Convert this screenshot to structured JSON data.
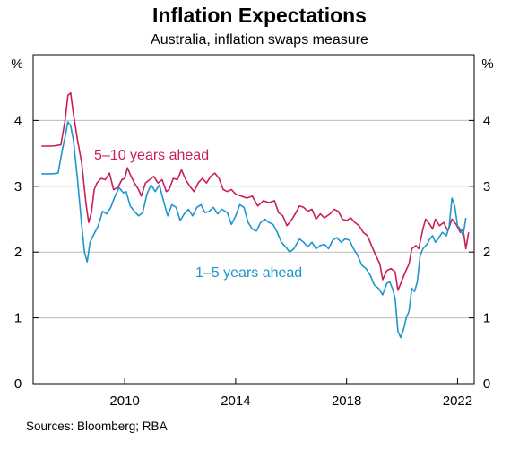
{
  "chart_data": {
    "type": "line",
    "title": "Inflation Expectations",
    "subtitle": "Australia, inflation swaps measure",
    "yunit_left": "%",
    "yunit_right": "%",
    "ylim": [
      0,
      5
    ],
    "xlim": [
      2006.7,
      2022.6
    ],
    "yticks": [
      "0",
      "1",
      "2",
      "3",
      "4"
    ],
    "xticks": [
      "2010",
      "2014",
      "2018",
      "2022"
    ],
    "grid": true,
    "legend": "inline labels",
    "source": "Sources: Bloomberg; RBA",
    "series": [
      {
        "name": "5–10 years ahead",
        "color": "#c81e5a",
        "points": [
          [
            2007.0,
            3.61
          ],
          [
            2007.4,
            3.61
          ],
          [
            2007.7,
            3.63
          ],
          [
            2007.85,
            4.0
          ],
          [
            2007.95,
            4.38
          ],
          [
            2008.05,
            4.42
          ],
          [
            2008.15,
            4.1
          ],
          [
            2008.3,
            3.7
          ],
          [
            2008.45,
            3.35
          ],
          [
            2008.6,
            2.75
          ],
          [
            2008.7,
            2.45
          ],
          [
            2008.8,
            2.6
          ],
          [
            2008.9,
            2.95
          ],
          [
            2009.0,
            3.05
          ],
          [
            2009.15,
            3.12
          ],
          [
            2009.3,
            3.1
          ],
          [
            2009.45,
            3.2
          ],
          [
            2009.6,
            2.95
          ],
          [
            2009.75,
            2.98
          ],
          [
            2009.9,
            3.1
          ],
          [
            2010.0,
            3.12
          ],
          [
            2010.1,
            3.28
          ],
          [
            2010.2,
            3.18
          ],
          [
            2010.35,
            3.05
          ],
          [
            2010.5,
            2.95
          ],
          [
            2010.6,
            2.85
          ],
          [
            2010.75,
            3.05
          ],
          [
            2010.9,
            3.1
          ],
          [
            2011.05,
            3.15
          ],
          [
            2011.2,
            3.05
          ],
          [
            2011.35,
            3.1
          ],
          [
            2011.5,
            2.92
          ],
          [
            2011.6,
            2.95
          ],
          [
            2011.75,
            3.12
          ],
          [
            2011.9,
            3.1
          ],
          [
            2012.05,
            3.25
          ],
          [
            2012.2,
            3.1
          ],
          [
            2012.35,
            3.0
          ],
          [
            2012.5,
            2.92
          ],
          [
            2012.65,
            3.05
          ],
          [
            2012.8,
            3.12
          ],
          [
            2012.95,
            3.05
          ],
          [
            2013.1,
            3.15
          ],
          [
            2013.25,
            3.2
          ],
          [
            2013.4,
            3.12
          ],
          [
            2013.55,
            2.95
          ],
          [
            2013.7,
            2.92
          ],
          [
            2013.85,
            2.95
          ],
          [
            2014.0,
            2.88
          ],
          [
            2014.2,
            2.85
          ],
          [
            2014.4,
            2.82
          ],
          [
            2014.6,
            2.85
          ],
          [
            2014.8,
            2.7
          ],
          [
            2015.0,
            2.78
          ],
          [
            2015.2,
            2.75
          ],
          [
            2015.4,
            2.78
          ],
          [
            2015.55,
            2.6
          ],
          [
            2015.7,
            2.55
          ],
          [
            2015.85,
            2.4
          ],
          [
            2016.0,
            2.48
          ],
          [
            2016.15,
            2.58
          ],
          [
            2016.3,
            2.7
          ],
          [
            2016.45,
            2.68
          ],
          [
            2016.6,
            2.62
          ],
          [
            2016.75,
            2.65
          ],
          [
            2016.9,
            2.5
          ],
          [
            2017.05,
            2.58
          ],
          [
            2017.2,
            2.52
          ],
          [
            2017.4,
            2.58
          ],
          [
            2017.55,
            2.65
          ],
          [
            2017.7,
            2.62
          ],
          [
            2017.85,
            2.5
          ],
          [
            2018.0,
            2.48
          ],
          [
            2018.15,
            2.52
          ],
          [
            2018.3,
            2.45
          ],
          [
            2018.45,
            2.4
          ],
          [
            2018.6,
            2.3
          ],
          [
            2018.75,
            2.25
          ],
          [
            2018.9,
            2.1
          ],
          [
            2019.05,
            1.95
          ],
          [
            2019.2,
            1.82
          ],
          [
            2019.3,
            1.58
          ],
          [
            2019.45,
            1.72
          ],
          [
            2019.6,
            1.75
          ],
          [
            2019.75,
            1.7
          ],
          [
            2019.85,
            1.42
          ],
          [
            2019.95,
            1.52
          ],
          [
            2020.1,
            1.68
          ],
          [
            2020.25,
            1.82
          ],
          [
            2020.35,
            2.05
          ],
          [
            2020.5,
            2.1
          ],
          [
            2020.6,
            2.05
          ],
          [
            2020.75,
            2.35
          ],
          [
            2020.85,
            2.5
          ],
          [
            2021.0,
            2.42
          ],
          [
            2021.1,
            2.35
          ],
          [
            2021.2,
            2.5
          ],
          [
            2021.35,
            2.4
          ],
          [
            2021.5,
            2.45
          ],
          [
            2021.65,
            2.32
          ],
          [
            2021.8,
            2.5
          ],
          [
            2021.95,
            2.42
          ],
          [
            2022.1,
            2.3
          ],
          [
            2022.2,
            2.35
          ],
          [
            2022.3,
            2.05
          ],
          [
            2022.4,
            2.3
          ]
        ]
      },
      {
        "name": "1–5 years ahead",
        "color": "#1e96cc",
        "points": [
          [
            2007.0,
            3.19
          ],
          [
            2007.4,
            3.19
          ],
          [
            2007.6,
            3.2
          ],
          [
            2007.75,
            3.55
          ],
          [
            2007.85,
            3.75
          ],
          [
            2007.95,
            3.98
          ],
          [
            2008.05,
            3.92
          ],
          [
            2008.15,
            3.7
          ],
          [
            2008.3,
            3.1
          ],
          [
            2008.45,
            2.4
          ],
          [
            2008.55,
            2.0
          ],
          [
            2008.65,
            1.85
          ],
          [
            2008.75,
            2.15
          ],
          [
            2008.9,
            2.28
          ],
          [
            2009.05,
            2.4
          ],
          [
            2009.2,
            2.62
          ],
          [
            2009.35,
            2.58
          ],
          [
            2009.5,
            2.68
          ],
          [
            2009.65,
            2.85
          ],
          [
            2009.8,
            2.98
          ],
          [
            2009.95,
            2.9
          ],
          [
            2010.05,
            2.92
          ],
          [
            2010.2,
            2.7
          ],
          [
            2010.35,
            2.62
          ],
          [
            2010.5,
            2.55
          ],
          [
            2010.65,
            2.6
          ],
          [
            2010.8,
            2.88
          ],
          [
            2010.95,
            3.02
          ],
          [
            2011.1,
            2.92
          ],
          [
            2011.25,
            3.02
          ],
          [
            2011.4,
            2.78
          ],
          [
            2011.55,
            2.55
          ],
          [
            2011.7,
            2.72
          ],
          [
            2011.85,
            2.68
          ],
          [
            2012.0,
            2.48
          ],
          [
            2012.15,
            2.58
          ],
          [
            2012.3,
            2.65
          ],
          [
            2012.45,
            2.55
          ],
          [
            2012.6,
            2.68
          ],
          [
            2012.75,
            2.72
          ],
          [
            2012.9,
            2.6
          ],
          [
            2013.05,
            2.62
          ],
          [
            2013.2,
            2.68
          ],
          [
            2013.35,
            2.58
          ],
          [
            2013.5,
            2.65
          ],
          [
            2013.7,
            2.6
          ],
          [
            2013.85,
            2.42
          ],
          [
            2014.0,
            2.55
          ],
          [
            2014.15,
            2.72
          ],
          [
            2014.3,
            2.68
          ],
          [
            2014.45,
            2.45
          ],
          [
            2014.6,
            2.35
          ],
          [
            2014.75,
            2.32
          ],
          [
            2014.9,
            2.45
          ],
          [
            2015.05,
            2.5
          ],
          [
            2015.2,
            2.45
          ],
          [
            2015.35,
            2.42
          ],
          [
            2015.5,
            2.3
          ],
          [
            2015.65,
            2.15
          ],
          [
            2015.8,
            2.08
          ],
          [
            2015.95,
            2.0
          ],
          [
            2016.1,
            2.05
          ],
          [
            2016.3,
            2.2
          ],
          [
            2016.45,
            2.15
          ],
          [
            2016.6,
            2.08
          ],
          [
            2016.75,
            2.15
          ],
          [
            2016.9,
            2.05
          ],
          [
            2017.05,
            2.1
          ],
          [
            2017.2,
            2.12
          ],
          [
            2017.35,
            2.05
          ],
          [
            2017.5,
            2.18
          ],
          [
            2017.65,
            2.22
          ],
          [
            2017.8,
            2.15
          ],
          [
            2017.95,
            2.2
          ],
          [
            2018.1,
            2.18
          ],
          [
            2018.25,
            2.05
          ],
          [
            2018.4,
            1.95
          ],
          [
            2018.55,
            1.8
          ],
          [
            2018.7,
            1.75
          ],
          [
            2018.85,
            1.65
          ],
          [
            2019.0,
            1.5
          ],
          [
            2019.15,
            1.45
          ],
          [
            2019.3,
            1.35
          ],
          [
            2019.45,
            1.52
          ],
          [
            2019.55,
            1.55
          ],
          [
            2019.65,
            1.45
          ],
          [
            2019.75,
            1.3
          ],
          [
            2019.85,
            0.8
          ],
          [
            2019.95,
            0.7
          ],
          [
            2020.05,
            0.82
          ],
          [
            2020.15,
            1.0
          ],
          [
            2020.25,
            1.1
          ],
          [
            2020.35,
            1.45
          ],
          [
            2020.45,
            1.4
          ],
          [
            2020.55,
            1.55
          ],
          [
            2020.65,
            1.95
          ],
          [
            2020.75,
            2.05
          ],
          [
            2020.9,
            2.12
          ],
          [
            2021.0,
            2.2
          ],
          [
            2021.1,
            2.25
          ],
          [
            2021.2,
            2.15
          ],
          [
            2021.3,
            2.2
          ],
          [
            2021.45,
            2.3
          ],
          [
            2021.6,
            2.25
          ],
          [
            2021.7,
            2.4
          ],
          [
            2021.8,
            2.82
          ],
          [
            2021.9,
            2.7
          ],
          [
            2022.0,
            2.4
          ],
          [
            2022.1,
            2.35
          ],
          [
            2022.2,
            2.25
          ],
          [
            2022.3,
            2.52
          ]
        ]
      }
    ]
  }
}
